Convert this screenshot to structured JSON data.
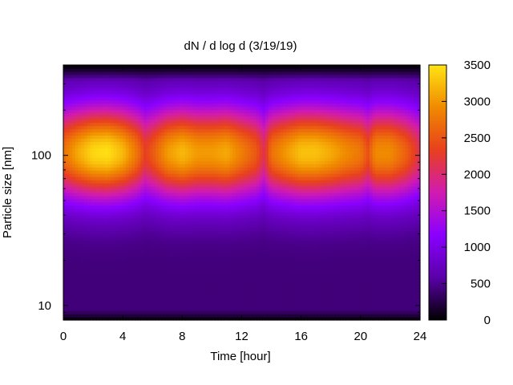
{
  "chart_data": {
    "type": "heatmap",
    "title": "dN / d log d (3/19/19)",
    "xlabel": "Time [hour]",
    "ylabel": "Particle size [nm]",
    "x_range": [
      0,
      24
    ],
    "x_ticks": [
      0,
      4,
      8,
      12,
      16,
      20,
      24
    ],
    "y_scale": "log",
    "y_range": [
      8,
      400
    ],
    "y_ticks": [
      10,
      100
    ],
    "colorbar": {
      "range": [
        0,
        3500
      ],
      "ticks": [
        0,
        500,
        1000,
        1500,
        2000,
        2500,
        3000,
        3500
      ],
      "palette": [
        "#000000",
        "#5a00a8",
        "#8a00ff",
        "#d11bb0",
        "#e8401e",
        "#f08a00",
        "#ffe414"
      ]
    },
    "size_distribution_nm": {
      "mode_diameter": 105,
      "mode_lower_edge": 45,
      "mode_upper_edge": 230
    },
    "peak_concentration_by_time": {
      "time_hour": [
        0,
        1,
        2,
        3,
        4,
        5,
        5.5,
        6,
        7,
        8,
        9,
        10,
        11,
        12,
        13,
        13.5,
        14,
        15,
        16,
        17,
        18,
        19,
        20,
        20.5,
        21,
        22,
        23,
        24
      ],
      "value": [
        2300,
        2700,
        3000,
        3050,
        2800,
        2300,
        1900,
        2100,
        2600,
        2800,
        2600,
        2600,
        2700,
        2400,
        2100,
        1700,
        2300,
        2600,
        2850,
        2850,
        2700,
        2500,
        2350,
        2050,
        2500,
        2500,
        2200,
        1700
      ]
    }
  }
}
